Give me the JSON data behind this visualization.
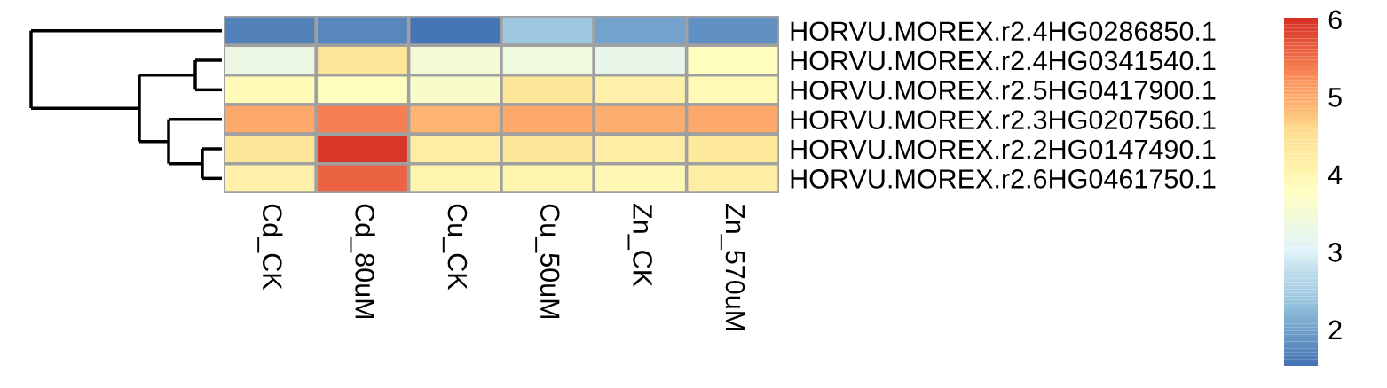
{
  "chart_data": {
    "type": "heatmap",
    "categories": [
      "Cd_CK",
      "Cd_80uM",
      "Cu_CK",
      "Cu_50uM",
      "Zn_CK",
      "Zn_570uM"
    ],
    "y_categories": [
      "HORVU.MOREX.r2.4HG0286850.1",
      "HORVU.MOREX.r2.4HG0341540.1",
      "HORVU.MOREX.r2.5HG0417900.1",
      "HORVU.MOREX.r2.3HG0207560.1",
      "HORVU.MOREX.r2.2HG0147490.1",
      "HORVU.MOREX.r2.6HG0461750.1"
    ],
    "cells": [
      [
        1.7,
        1.75,
        1.55,
        2.4,
        2.0,
        1.8
      ],
      [
        3.3,
        4.4,
        3.5,
        3.4,
        3.2,
        3.8
      ],
      [
        3.9,
        3.8,
        3.6,
        4.4,
        4.1,
        3.9
      ],
      [
        5.0,
        5.35,
        4.9,
        5.0,
        4.95,
        5.0
      ],
      [
        4.4,
        5.95,
        4.2,
        4.4,
        4.2,
        4.35
      ],
      [
        4.1,
        5.6,
        4.0,
        4.0,
        3.95,
        4.2
      ]
    ],
    "clim": [
      1.53,
      6.02
    ],
    "cticks": [
      2,
      3,
      4,
      5,
      6
    ],
    "colors": [
      "#4575b4",
      "#91bfdb",
      "#e0f3f8",
      "#ffffbf",
      "#fee090",
      "#fc8d59",
      "#d73027"
    ]
  }
}
